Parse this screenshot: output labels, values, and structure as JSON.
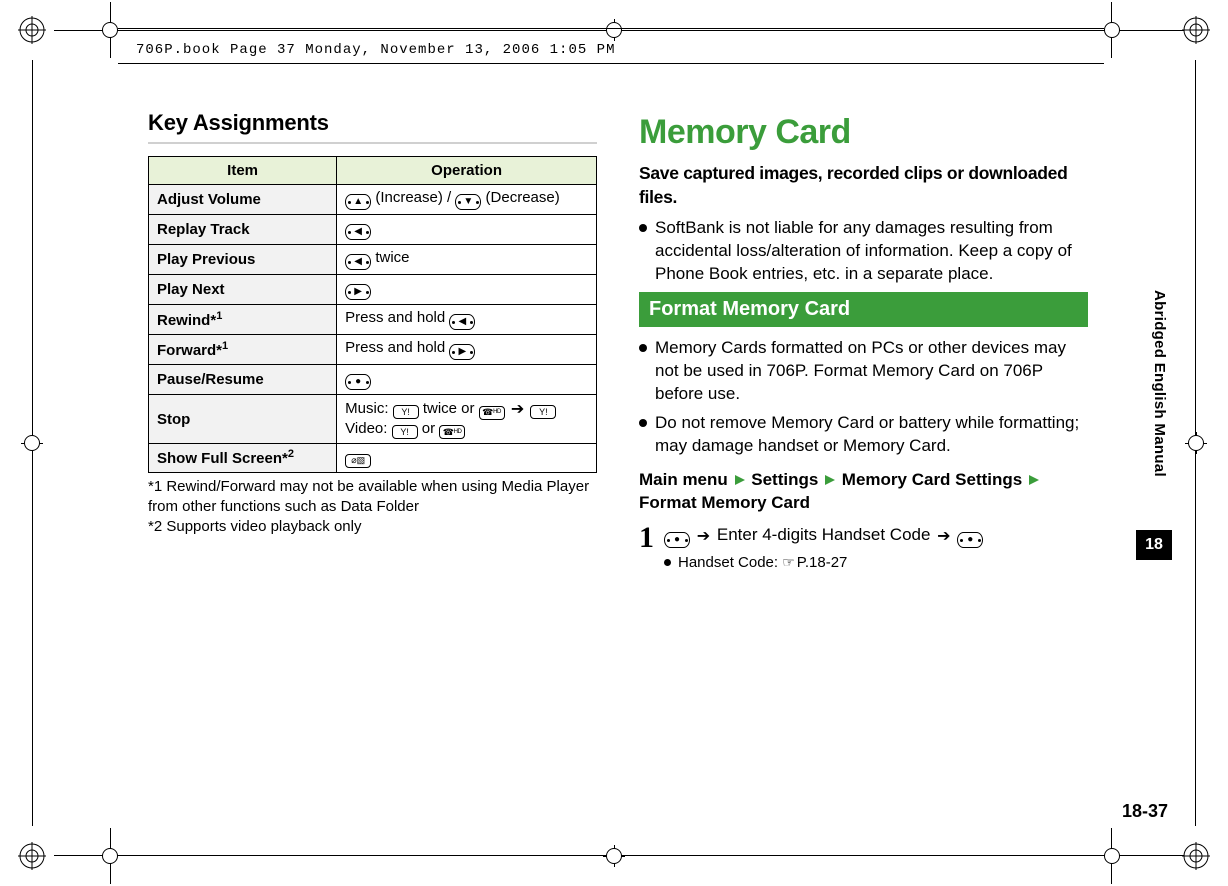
{
  "colors": {
    "accent_green": "#3b9d3b",
    "light_green": "#e8f2d8",
    "rule_grey": "#d0d0d0",
    "cell_grey": "#f2f2f2",
    "black": "#000000",
    "white": "#ffffff"
  },
  "header_meta": "706P.book  Page 37  Monday, November 13, 2006  1:05 PM",
  "left": {
    "section_title": "Key Assignments",
    "table": {
      "headers": [
        "Item",
        "Operation"
      ],
      "rows": [
        {
          "item": "Adjust Volume",
          "op_html": "<span class='key-oval'><span class='dot-l'></span><span class='arrow'>▲</span><span class='dot-r'></span></span> (Increase) / <span class='key-oval'><span class='dot-l'></span><span class='arrow'>▼</span><span class='dot-r'></span></span> (Decrease)"
        },
        {
          "item": "Replay Track",
          "op_html": "<span class='key-oval'><span class='dot-l'></span><span class='arrow'>◀</span><span class='dot-r'></span></span>"
        },
        {
          "item": "Play Previous",
          "op_html": "<span class='key-oval'><span class='dot-l'></span><span class='arrow'>◀</span><span class='dot-r'></span></span> twice"
        },
        {
          "item": "Play Next",
          "op_html": "<span class='key-oval'><span class='dot-l'></span><span class='arrow'>▶</span><span class='dot-r'></span></span>"
        },
        {
          "item": "Rewind*",
          "sup": "1",
          "op_html": "Press and hold <span class='key-oval'><span class='dot-l'></span><span class='arrow'>◀</span><span class='dot-r'></span></span>"
        },
        {
          "item": "Forward*",
          "sup": "1",
          "op_html": "Press and hold <span class='key-oval'><span class='dot-l'></span><span class='arrow'>▶</span><span class='dot-r'></span></span>"
        },
        {
          "item": "Pause/Resume",
          "op_html": "<span class='key-oval'><span class='dot-l'></span><span class='arrow'>●</span><span class='dot-r'></span></span>"
        },
        {
          "item": "Stop",
          "op_html": "Music: <span class='key-btn'>Y!</span> twice or <span class='key-btn'>☎ᴴᴰ</span> <span class='arrow-inline'>➔</span> <span class='key-btn'>Y!</span><br>Video: <span class='key-btn'>Y!</span> or <span class='key-btn'>☎ᴴᴰ</span>"
        },
        {
          "item": "Show Full Screen*",
          "sup": "2",
          "op_html": "<span class='key-btn'>⌀▧</span>"
        }
      ]
    },
    "footnotes": [
      "*1 Rewind/Forward may not be available when using Media Player from other functions such as Data Folder",
      "*2 Supports video playback only"
    ]
  },
  "right": {
    "main_title": "Memory Card",
    "lead": "Save captured images, recorded clips or downloaded files.",
    "intro_bullets": [
      "SoftBank is not liable for any damages resulting from accidental loss/alteration of information. Keep a copy of Phone Book entries, etc. in a separate place."
    ],
    "sub_header": "Format Memory Card",
    "sub_bullets": [
      "Memory Cards formatted on PCs or other devices may not be used in 706P. Format Memory Card on 706P before use.",
      "Do not remove Memory Card or battery while formatting; may damage handset or Memory Card."
    ],
    "nav_path": [
      "Main menu",
      "Settings",
      "Memory Card Settings",
      "Format Memory Card"
    ],
    "step": {
      "num": "1",
      "text_html": "<span class='key-oval'><span class='dot-l'></span><span class='arrow'>●</span><span class='dot-r'></span></span> <span class='arrow-inline'>➔</span> Enter 4-digits Handset Code <span class='arrow-inline'>➔</span> <span class='key-oval'><span class='dot-l'></span><span class='arrow'>●</span><span class='dot-r'></span></span>",
      "sub_html": "Handset Code: <span class='hand'>☞</span>P.18-27"
    }
  },
  "side_label": "Abridged English Manual",
  "chapter_tab": "18",
  "page_number": "18-37"
}
